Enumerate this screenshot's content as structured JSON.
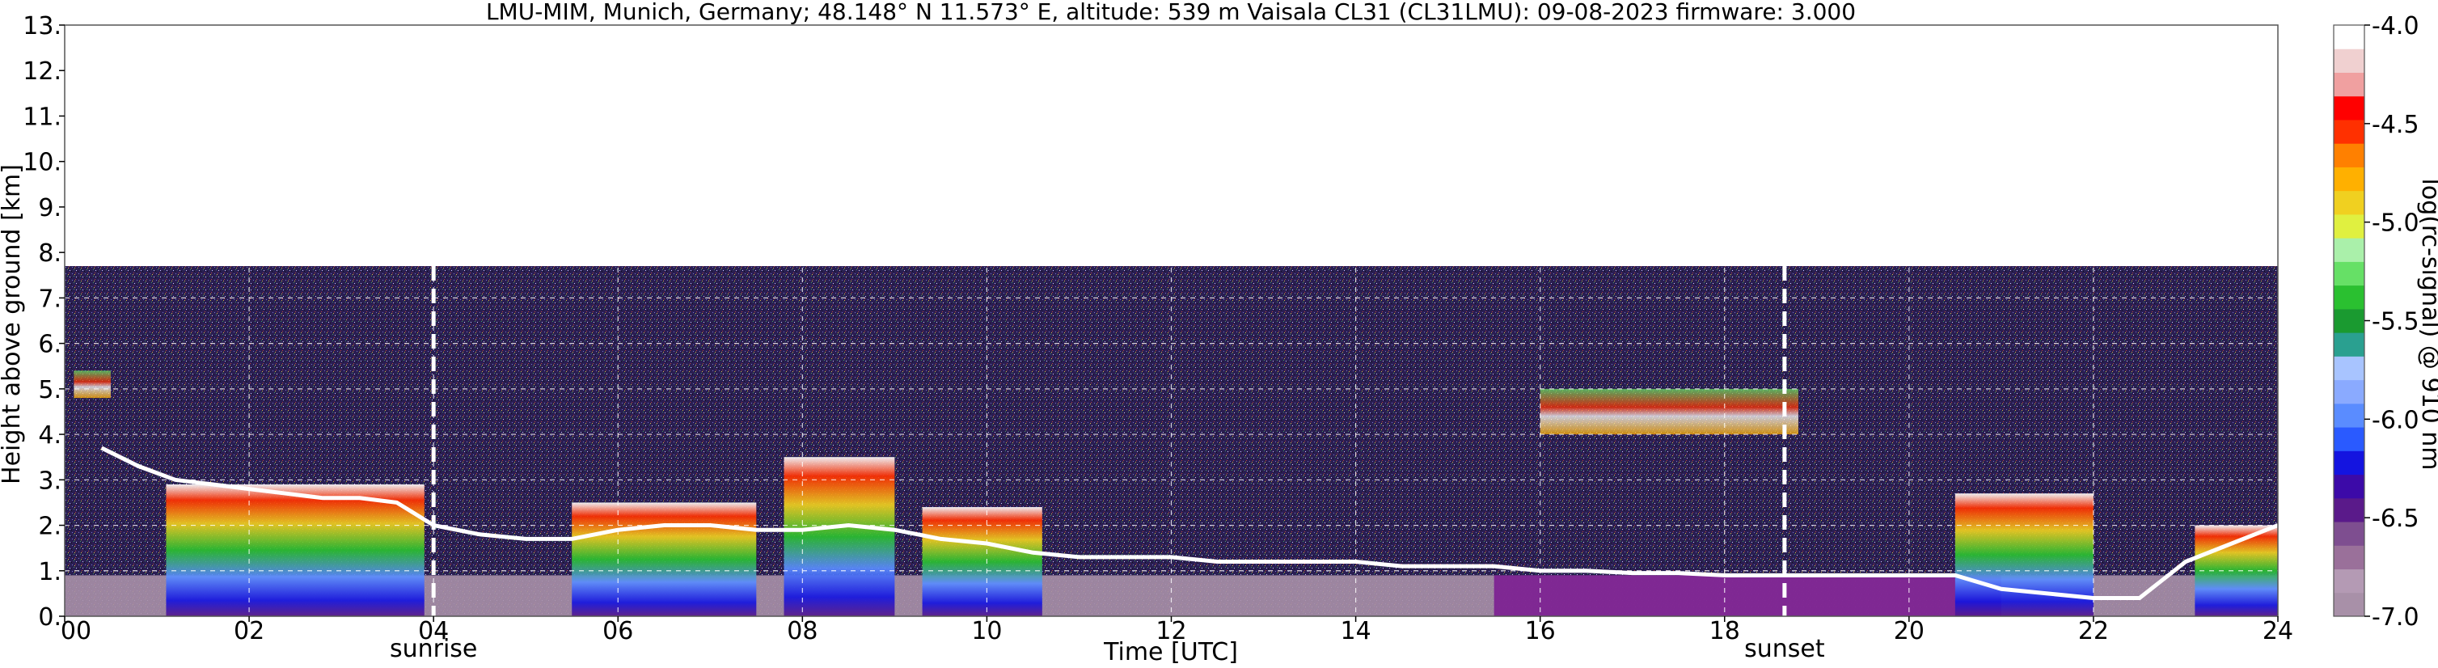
{
  "chart_data": {
    "type": "heatmap",
    "title": "LMU-MIM, Munich, Germany; 48.148° N 11.573° E, altitude: 539 m    Vaisala CL31 (CL31LMU): 09-08-2023    firmware: 3.000",
    "xlabel": "Time [UTC]",
    "ylabel": "Height above ground [km]",
    "xlim": [
      0,
      24
    ],
    "ylim": [
      0,
      13
    ],
    "x_ticks": [
      0,
      2,
      4,
      6,
      8,
      10,
      12,
      14,
      16,
      18,
      20,
      22,
      24
    ],
    "x_tick_labels": [
      "00",
      "02",
      "04",
      "06",
      "08",
      "10",
      "12",
      "14",
      "16",
      "18",
      "20",
      "22",
      "24"
    ],
    "y_ticks": [
      0,
      1,
      2,
      3,
      4,
      5,
      6,
      7,
      8,
      9,
      10,
      11,
      12,
      13
    ],
    "y_tick_labels": [
      "0.",
      "1.",
      "2.",
      "3.",
      "4.",
      "5.",
      "6.",
      "7.",
      "8.",
      "9.",
      "10.",
      "11.",
      "12.",
      "13."
    ],
    "grid": true,
    "measurement_top_km": 7.7,
    "colorbar": {
      "label": "log(rc-signal) @ 910 nm",
      "min": -7.0,
      "max": -4.0,
      "ticks": [
        -4.0,
        -4.5,
        -5.0,
        -5.5,
        -6.0,
        -6.5,
        -7.0
      ],
      "tick_labels": [
        "-4.0",
        "-4.5",
        "-5.0",
        "-5.5",
        "-6.0",
        "-6.5",
        "-7.0"
      ],
      "colors": [
        "#a890a8",
        "#b49ab4",
        "#9a709a",
        "#7e4e90",
        "#5a1a8a",
        "#3c0aa8",
        "#1414e0",
        "#2a5aff",
        "#5a8cff",
        "#8aaaff",
        "#a8c4ff",
        "#2aa090",
        "#1a9a30",
        "#2ac030",
        "#66e066",
        "#aaf0aa",
        "#e0f040",
        "#f0d020",
        "#ffb000",
        "#ff8000",
        "#ff3000",
        "#ff0000",
        "#f0a0a0",
        "#f0d0d0",
        "#ffffff"
      ]
    },
    "annotations": [
      {
        "text": "sunrise",
        "x": 4.0
      },
      {
        "text": "sunset",
        "x": 18.65
      }
    ],
    "cloud_base_km": [
      {
        "t": 0.4,
        "h": 3.7
      },
      {
        "t": 0.8,
        "h": 3.3
      },
      {
        "t": 1.2,
        "h": 3.0
      },
      {
        "t": 1.6,
        "h": 2.9
      },
      {
        "t": 2.0,
        "h": 2.8
      },
      {
        "t": 2.4,
        "h": 2.7
      },
      {
        "t": 2.8,
        "h": 2.6
      },
      {
        "t": 3.2,
        "h": 2.6
      },
      {
        "t": 3.6,
        "h": 2.5
      },
      {
        "t": 4.0,
        "h": 2.0
      },
      {
        "t": 4.5,
        "h": 1.8
      },
      {
        "t": 5.0,
        "h": 1.7
      },
      {
        "t": 5.5,
        "h": 1.7
      },
      {
        "t": 6.0,
        "h": 1.9
      },
      {
        "t": 6.5,
        "h": 2.0
      },
      {
        "t": 7.0,
        "h": 2.0
      },
      {
        "t": 7.5,
        "h": 1.9
      },
      {
        "t": 8.0,
        "h": 1.9
      },
      {
        "t": 8.5,
        "h": 2.0
      },
      {
        "t": 9.0,
        "h": 1.9
      },
      {
        "t": 9.5,
        "h": 1.7
      },
      {
        "t": 10.0,
        "h": 1.6
      },
      {
        "t": 10.5,
        "h": 1.4
      },
      {
        "t": 11.0,
        "h": 1.3
      },
      {
        "t": 11.5,
        "h": 1.3
      },
      {
        "t": 12.0,
        "h": 1.3
      },
      {
        "t": 12.5,
        "h": 1.2
      },
      {
        "t": 13.0,
        "h": 1.2
      },
      {
        "t": 13.5,
        "h": 1.2
      },
      {
        "t": 14.0,
        "h": 1.2
      },
      {
        "t": 14.5,
        "h": 1.1
      },
      {
        "t": 15.0,
        "h": 1.1
      },
      {
        "t": 15.5,
        "h": 1.1
      },
      {
        "t": 16.0,
        "h": 1.0
      },
      {
        "t": 16.5,
        "h": 1.0
      },
      {
        "t": 17.0,
        "h": 0.95
      },
      {
        "t": 17.5,
        "h": 0.95
      },
      {
        "t": 18.0,
        "h": 0.9
      },
      {
        "t": 18.5,
        "h": 0.9
      },
      {
        "t": 19.0,
        "h": 0.9
      },
      {
        "t": 19.5,
        "h": 0.9
      },
      {
        "t": 20.0,
        "h": 0.9
      },
      {
        "t": 20.5,
        "h": 0.9
      },
      {
        "t": 21.0,
        "h": 0.6
      },
      {
        "t": 21.5,
        "h": 0.5
      },
      {
        "t": 22.0,
        "h": 0.4
      },
      {
        "t": 22.5,
        "h": 0.4
      },
      {
        "t": 23.0,
        "h": 1.2
      },
      {
        "t": 23.5,
        "h": 1.6
      },
      {
        "t": 24.0,
        "h": 2.0
      }
    ],
    "rain_events": [
      {
        "t_start": 1.1,
        "t_end": 3.9,
        "top_km": 2.9
      },
      {
        "t_start": 5.5,
        "t_end": 7.5,
        "top_km": 2.5
      },
      {
        "t_start": 7.8,
        "t_end": 9.0,
        "top_km": 3.5
      },
      {
        "t_start": 9.3,
        "t_end": 10.6,
        "top_km": 2.4
      },
      {
        "t_start": 20.5,
        "t_end": 22.0,
        "top_km": 2.7
      },
      {
        "t_start": 23.1,
        "t_end": 24.0,
        "top_km": 2.0
      }
    ],
    "elevated_layers": [
      {
        "t_start": 0.1,
        "t_end": 0.5,
        "bottom_km": 4.8,
        "top_km": 5.4
      },
      {
        "t_start": 16.0,
        "t_end": 18.8,
        "bottom_km": 4.0,
        "top_km": 5.0
      }
    ]
  }
}
